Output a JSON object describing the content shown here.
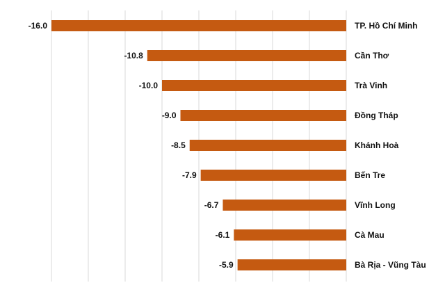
{
  "chart_data": {
    "type": "bar",
    "orientation": "horizontal",
    "categories": [
      "TP. Hồ Chí Minh",
      "Cần Thơ",
      "Trà Vinh",
      "Đồng Tháp",
      "Khánh Hoà",
      "Bến Tre",
      "Vĩnh Long",
      "Cà Mau",
      "Bà Rịa - Vũng Tàu"
    ],
    "values": [
      -16.0,
      -10.8,
      -10.0,
      -9.0,
      -8.5,
      -7.9,
      -6.7,
      -6.1,
      -5.9
    ],
    "value_labels": [
      "-16.0",
      "-10.8",
      "-10.0",
      "-9.0",
      "-8.5",
      "-7.9",
      "-6.7",
      "-6.1",
      "-5.9"
    ],
    "xlim": [
      -16.0,
      0
    ],
    "grid": "vertical",
    "colors": {
      "bar": "#C55A11",
      "grid": "#D9D9D9"
    }
  }
}
